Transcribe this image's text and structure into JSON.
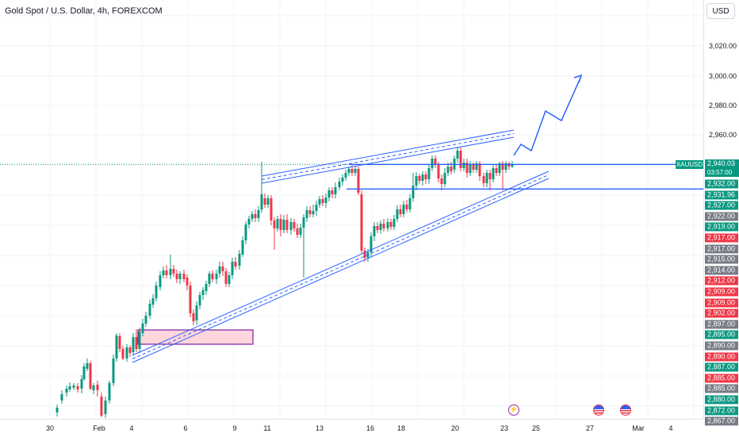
{
  "header": {
    "title": "Gold Spot / U.S. Dollar, 4h, FOREXCOM",
    "currency_button": "USD"
  },
  "price_axis": {
    "ticks": [
      "3,020.00",
      "3,000.00",
      "2,980.00",
      "2,960.00"
    ],
    "labels": [
      {
        "text": "2,932.00",
        "color": "#089981"
      },
      {
        "text": "2,931.96",
        "color": "#089981"
      },
      {
        "text": "2,927.00",
        "color": "#089981"
      },
      {
        "text": "2,922.00",
        "color": "#787b86"
      },
      {
        "text": "2,919.00",
        "color": "#089981"
      },
      {
        "text": "2,917.00",
        "color": "#f23645"
      },
      {
        "text": "2,917.00",
        "color": "#787b86"
      },
      {
        "text": "2,915.00",
        "color": "#787b86"
      },
      {
        "text": "2,914.00",
        "color": "#787b86"
      },
      {
        "text": "2,912.00",
        "color": "#f23645"
      },
      {
        "text": "2,909.00",
        "color": "#f23645"
      },
      {
        "text": "2,909.00",
        "color": "#f23645"
      },
      {
        "text": "2,902.00",
        "color": "#f23645"
      },
      {
        "text": "2,897.00",
        "color": "#787b86"
      },
      {
        "text": "2,895.00",
        "color": "#089981"
      },
      {
        "text": "2,890.00",
        "color": "#787b86"
      },
      {
        "text": "2,890.00",
        "color": "#f23645"
      },
      {
        "text": "2,887.00",
        "color": "#089981"
      },
      {
        "text": "2,885.00",
        "color": "#f23645"
      },
      {
        "text": "2,885.00",
        "color": "#787b86"
      },
      {
        "text": "2,880.00",
        "color": "#089981"
      },
      {
        "text": "2,872.00",
        "color": "#089981"
      },
      {
        "text": "2,867.00",
        "color": "#787b86"
      }
    ],
    "current": {
      "symbol": "XAUUSD",
      "price": "2,940.03",
      "countdown": "03:57:00",
      "color": "#089981"
    }
  },
  "time_axis": {
    "labels": [
      "30",
      "Feb",
      "4",
      "6",
      "9",
      "11",
      "13",
      "16",
      "18",
      "20",
      "23",
      "25",
      "27",
      "Mar",
      "4"
    ]
  },
  "colors": {
    "up": "#089981",
    "down": "#f23645",
    "drawing": "#2962ff",
    "zone_fill": "#ffd6dc",
    "zone_border": "#7b1fa2"
  },
  "events": [
    {
      "name": "flash-icon",
      "glyph": "⚡"
    },
    {
      "name": "us-flag-icon"
    },
    {
      "name": "us-flag-icon"
    }
  ],
  "chart_data": {
    "type": "candlestick",
    "symbol": "XAUUSD",
    "interval": "4h",
    "y_scale": "price",
    "ylim": [
      2867,
      3027
    ],
    "x_labels": [
      "30",
      "Feb",
      "4",
      "6",
      "9",
      "11",
      "13",
      "16",
      "18",
      "20",
      "23",
      "25",
      "27",
      "Mar",
      "4"
    ],
    "horizontal_levels": [
      2940.03,
      2931.96
    ],
    "projection_path": [
      2940.03,
      2945,
      2942,
      2962,
      2958,
      2985,
      3000
    ]
  }
}
